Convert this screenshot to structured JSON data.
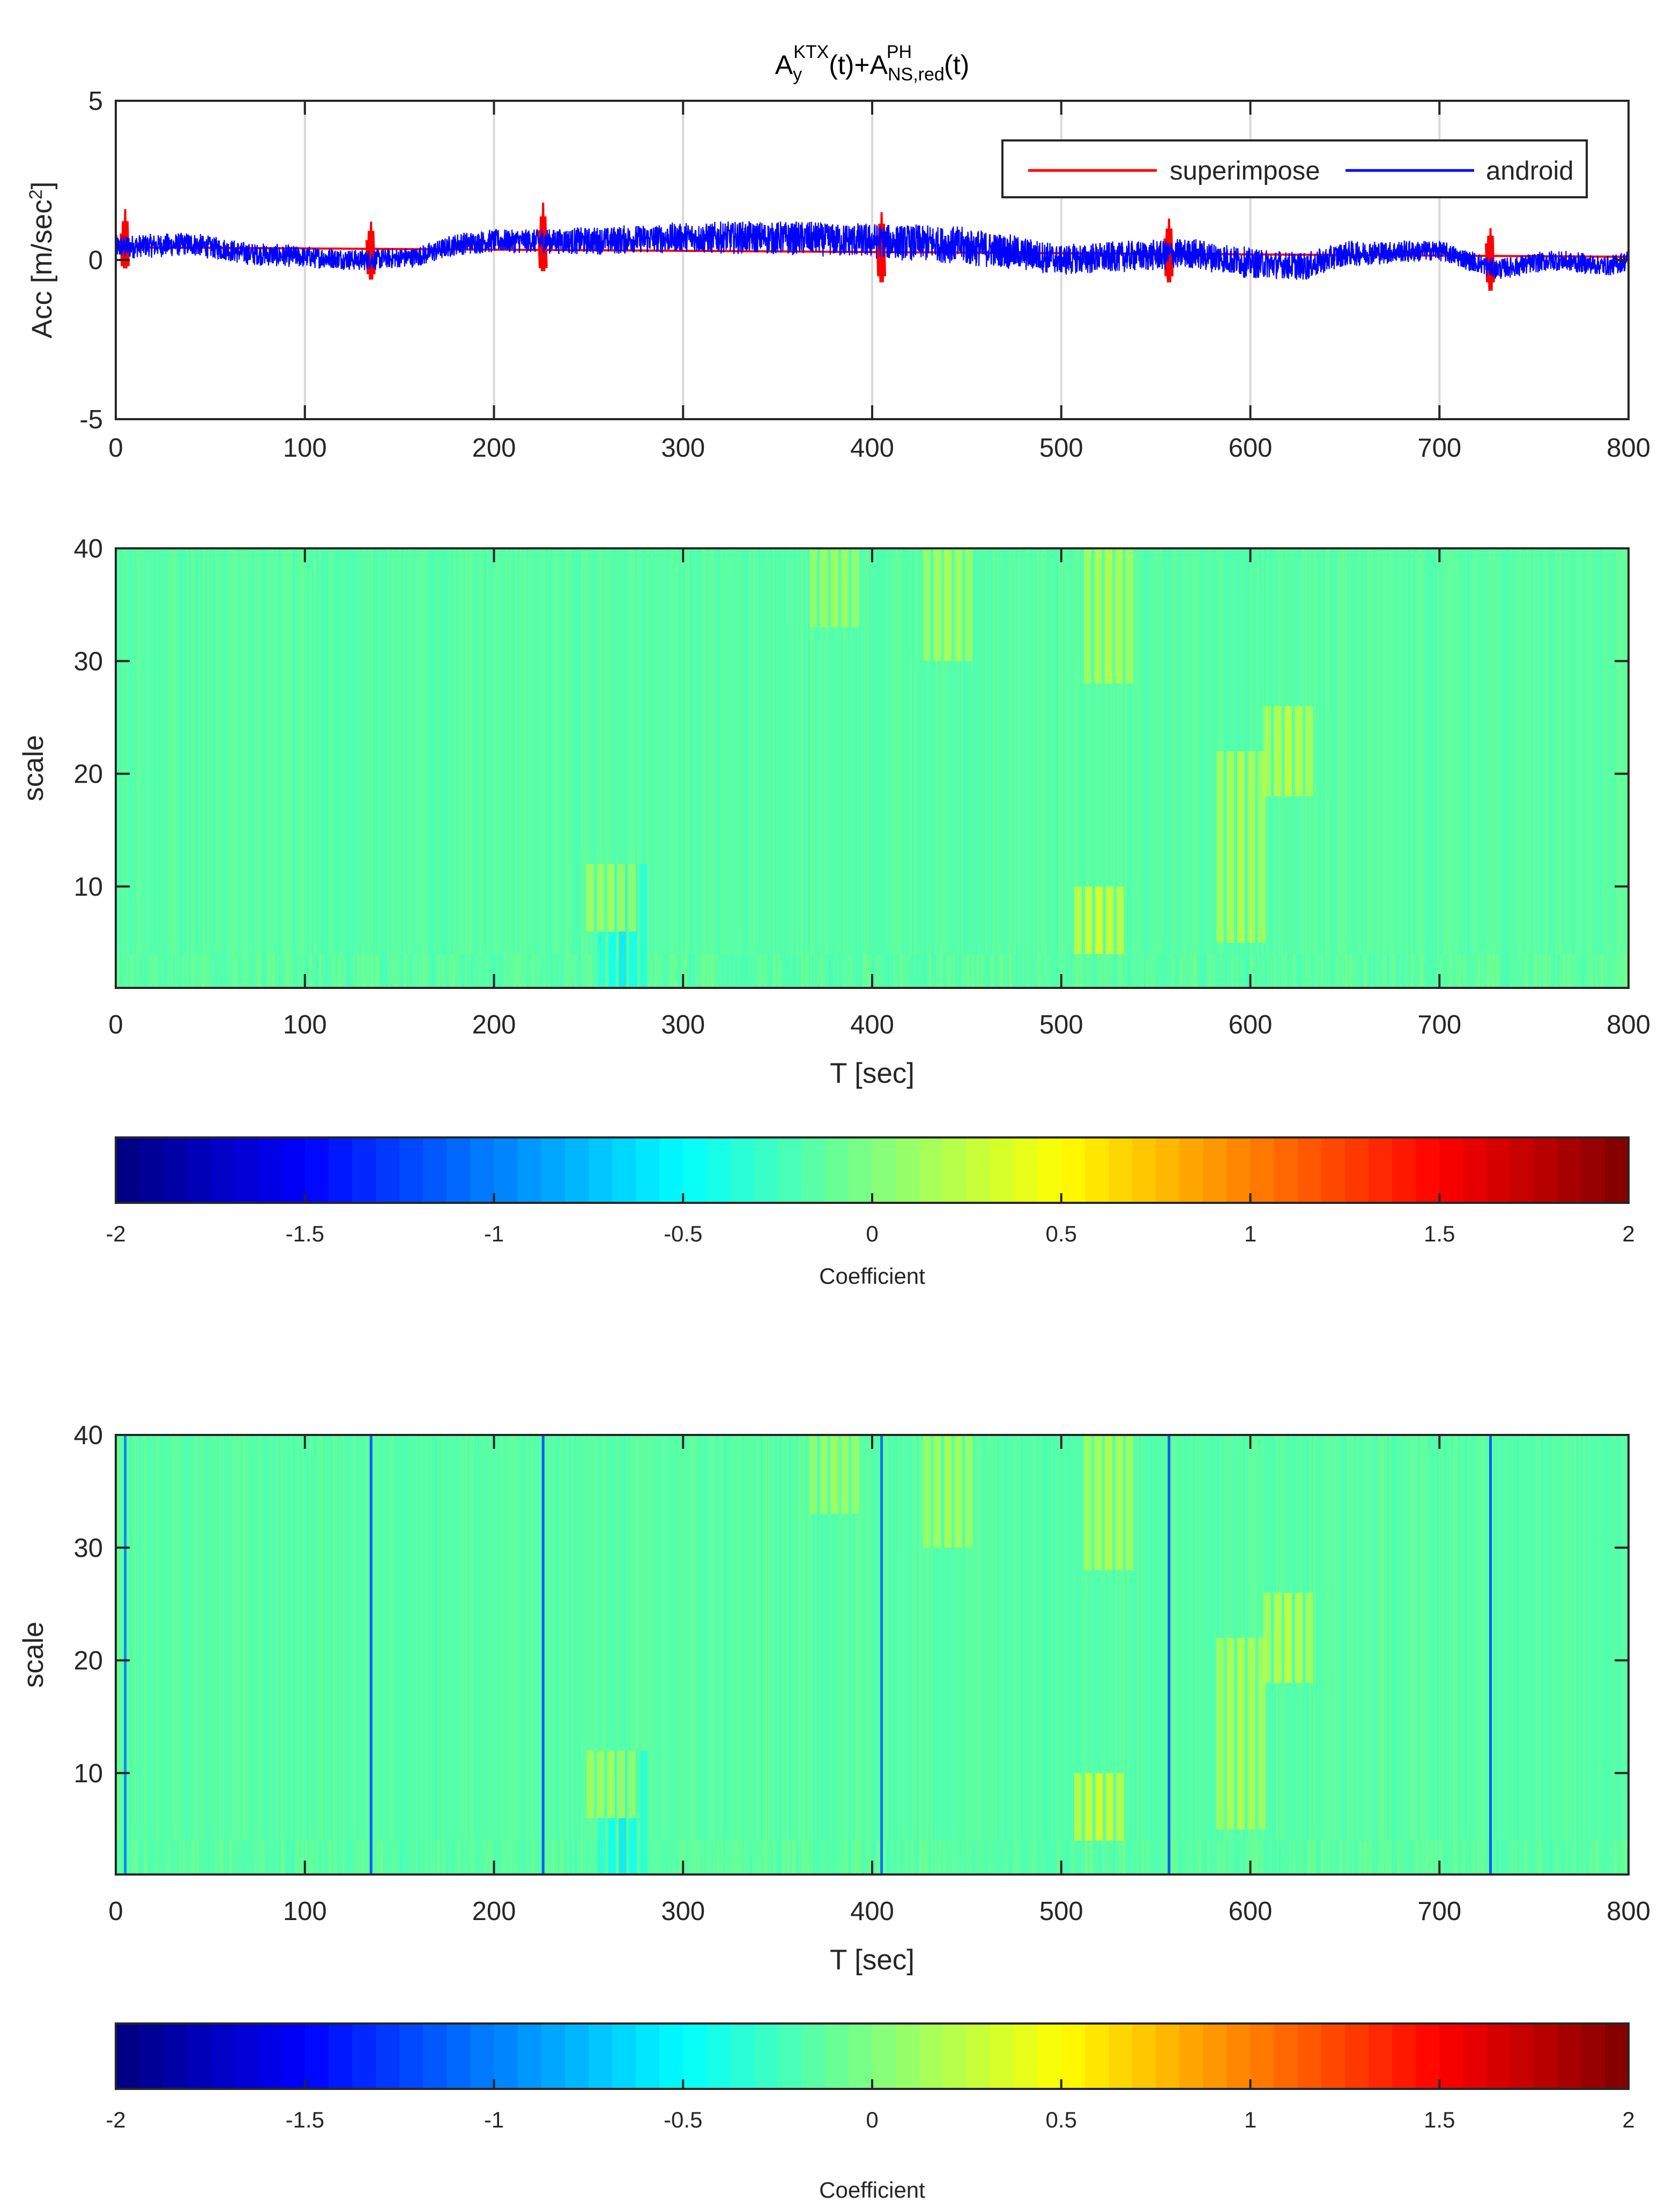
{
  "chart_data": [
    {
      "type": "line",
      "title_parts": {
        "A1": "A",
        "A1_sup": "KTX",
        "A1_sub": "y",
        "mid": "(t)+A",
        "A2_sup": "PH",
        "A2_sub": "NS,red",
        "end": "(t)"
      },
      "ylabel": "Acc [m/sec",
      "ylabel_sup": "2",
      "ylabel_end": "]",
      "xlim": [
        0,
        800
      ],
      "ylim": [
        -5,
        5
      ],
      "xticks": [
        "0",
        "100",
        "200",
        "300",
        "400",
        "500",
        "600",
        "700",
        "800"
      ],
      "yticks": [
        "-5",
        "0",
        "5"
      ],
      "grid": "vertical",
      "legend": "top-right",
      "series": [
        {
          "name": "superimpose",
          "color": "#ff0000",
          "baseline_points": [
            [
              0,
              0.4
            ],
            [
              800,
              0.1
            ]
          ],
          "spikes": [
            {
              "x": 5,
              "max": 1.6,
              "min": -0.3
            },
            {
              "x": 135,
              "max": 1.2,
              "min": -0.7
            },
            {
              "x": 226,
              "max": 1.8,
              "min": -0.4
            },
            {
              "x": 405,
              "max": 1.5,
              "min": -0.8
            },
            {
              "x": 557,
              "max": 1.3,
              "min": -0.8
            },
            {
              "x": 727,
              "max": 1.0,
              "min": -1.1
            }
          ]
        },
        {
          "name": "android",
          "color": "#0000ff",
          "trend": [
            [
              0,
              0.4
            ],
            [
              40,
              0.5
            ],
            [
              70,
              0.2
            ],
            [
              100,
              0.1
            ],
            [
              130,
              0.0
            ],
            [
              160,
              0.1
            ],
            [
              180,
              0.5
            ],
            [
              200,
              0.6
            ],
            [
              250,
              0.6
            ],
            [
              300,
              0.7
            ],
            [
              350,
              0.7
            ],
            [
              400,
              0.6
            ],
            [
              440,
              0.5
            ],
            [
              480,
              0.2
            ],
            [
              500,
              0.0
            ],
            [
              530,
              0.1
            ],
            [
              570,
              0.2
            ],
            [
              600,
              -0.1
            ],
            [
              630,
              -0.2
            ],
            [
              650,
              0.2
            ],
            [
              700,
              0.3
            ],
            [
              730,
              -0.3
            ],
            [
              760,
              0.0
            ],
            [
              790,
              -0.2
            ],
            [
              800,
              0.0
            ]
          ],
          "noise_band": [
            [
              0,
              0.7
            ],
            [
              160,
              0.6
            ],
            [
              300,
              0.9
            ],
            [
              450,
              1.1
            ],
            [
              500,
              0.9
            ],
            [
              600,
              0.9
            ],
            [
              700,
              0.6
            ],
            [
              800,
              0.6
            ]
          ]
        }
      ]
    },
    {
      "type": "heatmap",
      "xlabel": "T [sec]",
      "ylabel": "scale",
      "xlim": [
        0,
        800
      ],
      "ylim": [
        1,
        40
      ],
      "xticks": [
        "0",
        "100",
        "200",
        "300",
        "400",
        "500",
        "600",
        "700",
        "800"
      ],
      "yticks": [
        "10",
        "20",
        "30",
        "40"
      ],
      "base_value": -0.15,
      "features": [
        {
          "t": 268,
          "scale": [
            1,
            12
          ],
          "value": -0.6
        },
        {
          "t": 262,
          "scale": [
            6,
            12
          ],
          "value": 0.3
        },
        {
          "t": 520,
          "scale": [
            4,
            10
          ],
          "value": 0.5
        },
        {
          "t": 595,
          "scale": [
            5,
            22
          ],
          "value": 0.3
        },
        {
          "t": 620,
          "scale": [
            18,
            26
          ],
          "value": 0.35
        },
        {
          "t": 440,
          "scale": [
            30,
            40
          ],
          "value": 0.25
        },
        {
          "t": 525,
          "scale": [
            28,
            40
          ],
          "value": 0.3
        },
        {
          "t": 380,
          "scale": [
            33,
            40
          ],
          "value": 0.2
        }
      ]
    },
    {
      "type": "colorbar",
      "colormap": "jet",
      "label": "Coefficient",
      "range": [
        -2,
        2
      ],
      "ticks": [
        "-2",
        "-1.5",
        "-1",
        "-0.5",
        "0",
        "0.5",
        "1",
        "1.5",
        "2"
      ]
    },
    {
      "type": "heatmap",
      "xlabel": "T [sec]",
      "ylabel": "scale",
      "xlim": [
        0,
        800
      ],
      "ylim": [
        1,
        40
      ],
      "xticks": [
        "0",
        "100",
        "200",
        "300",
        "400",
        "500",
        "600",
        "700",
        "800"
      ],
      "yticks": [
        "10",
        "20",
        "30",
        "40"
      ],
      "base_value": -0.15,
      "features": [
        {
          "t": 268,
          "scale": [
            1,
            12
          ],
          "value": -0.6
        },
        {
          "t": 262,
          "scale": [
            6,
            12
          ],
          "value": 0.3
        },
        {
          "t": 520,
          "scale": [
            4,
            10
          ],
          "value": 0.5
        },
        {
          "t": 595,
          "scale": [
            5,
            22
          ],
          "value": 0.3
        },
        {
          "t": 620,
          "scale": [
            18,
            26
          ],
          "value": 0.35
        },
        {
          "t": 440,
          "scale": [
            30,
            40
          ],
          "value": 0.25
        },
        {
          "t": 525,
          "scale": [
            28,
            40
          ],
          "value": 0.3
        },
        {
          "t": 380,
          "scale": [
            33,
            40
          ],
          "value": 0.2
        },
        {
          "t": 5,
          "scale": [
            1,
            40
          ],
          "value": -1.0,
          "thin": true
        },
        {
          "t": 135,
          "scale": [
            1,
            40
          ],
          "value": -1.2,
          "thin": true
        },
        {
          "t": 226,
          "scale": [
            1,
            40
          ],
          "value": -1.2,
          "thin": true
        },
        {
          "t": 405,
          "scale": [
            1,
            40
          ],
          "value": -1.1,
          "thin": true
        },
        {
          "t": 557,
          "scale": [
            1,
            40
          ],
          "value": -1.2,
          "thin": true
        },
        {
          "t": 727,
          "scale": [
            1,
            40
          ],
          "value": -1.2,
          "thin": true
        }
      ]
    },
    {
      "type": "colorbar",
      "colormap": "jet",
      "label": "Coefficient",
      "range": [
        -2,
        2
      ],
      "ticks": [
        "-2",
        "-1.5",
        "-1",
        "-0.5",
        "0",
        "0.5",
        "1",
        "1.5",
        "2"
      ]
    }
  ]
}
